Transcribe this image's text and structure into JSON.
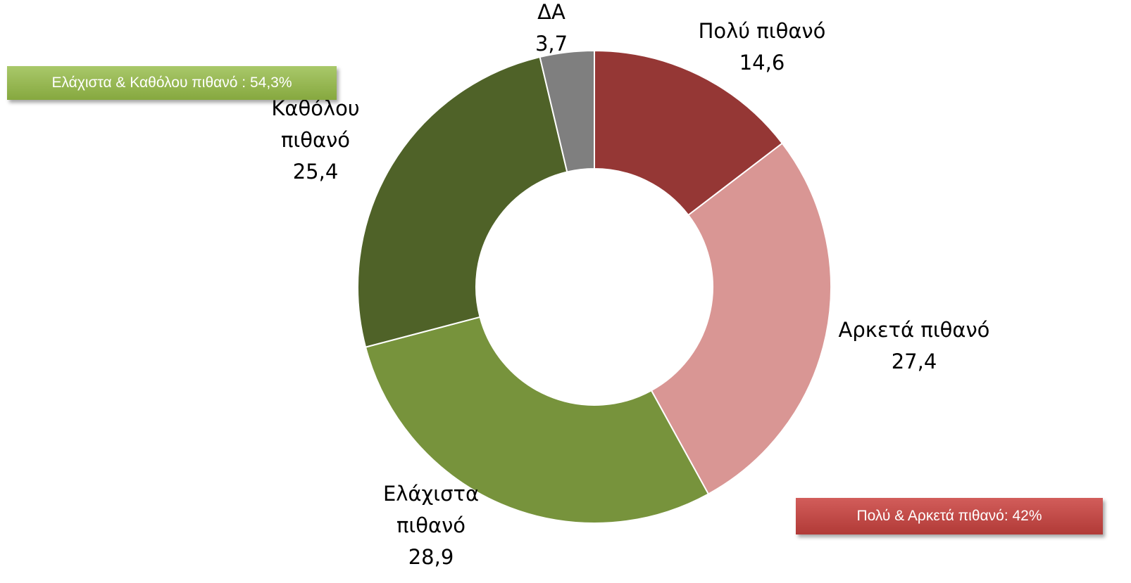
{
  "chart_data": {
    "type": "donut",
    "categories": [
      "Πολύ πιθανό",
      "Αρκετά πιθανό",
      "Ελάχιστα πιθανό",
      "Καθόλου πιθανό",
      "ΔΑ"
    ],
    "values": [
      14.6,
      27.4,
      28.9,
      25.4,
      3.7
    ],
    "value_labels": [
      "14,6",
      "27,4",
      "28,9",
      "25,4",
      "3,7"
    ],
    "colors": [
      "#953735",
      "#d99694",
      "#77933c",
      "#4f6228",
      "#7f7f7f"
    ],
    "annotations": [
      "Ελάχιστα & Καθόλου πιθανό : 54,3%",
      "Πολύ & Αρκετά πιθανό: 42%"
    ]
  }
}
